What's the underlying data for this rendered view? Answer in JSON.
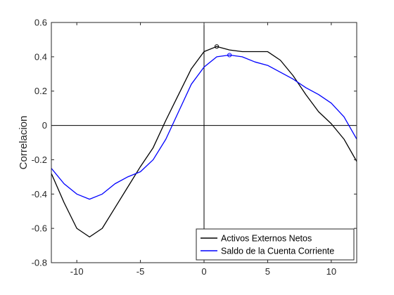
{
  "chart_data": {
    "type": "line",
    "title": "",
    "xlabel": "",
    "ylabel": "Correlacion",
    "xlim": [
      -12,
      12
    ],
    "ylim": [
      -0.8,
      0.6
    ],
    "x_ticks": [
      -10,
      -5,
      0,
      5,
      10
    ],
    "y_ticks": [
      -0.8,
      -0.6,
      -0.4,
      -0.2,
      0,
      0.2,
      0.4,
      0.6
    ],
    "x_tick_labels": [
      "-10",
      "-5",
      "0",
      "5",
      "10"
    ],
    "y_tick_labels": [
      "-0.8",
      "-0.6",
      "-0.4",
      "-0.2",
      "0",
      "0.2",
      "0.4",
      "0.6"
    ],
    "grid": false,
    "reference_lines": {
      "horizontal": 0,
      "vertical": 0
    },
    "legend_position": "bottom-right",
    "x": [
      -12,
      -11,
      -10,
      -9,
      -8,
      -7,
      -6,
      -5,
      -4,
      -3,
      -2,
      -1,
      0,
      1,
      2,
      3,
      4,
      5,
      6,
      7,
      8,
      9,
      10,
      11,
      12
    ],
    "series": [
      {
        "name": "Activos Externos Netos",
        "color": "#000000",
        "values": [
          -0.28,
          -0.45,
          -0.6,
          -0.65,
          -0.6,
          -0.48,
          -0.36,
          -0.24,
          -0.13,
          0.03,
          0.18,
          0.33,
          0.43,
          0.46,
          0.44,
          0.43,
          0.43,
          0.43,
          0.38,
          0.29,
          0.18,
          0.08,
          0.01,
          -0.08,
          -0.21
        ],
        "marker_at_index": 13
      },
      {
        "name": "Saldo de la Cuenta Corriente",
        "color": "#0000ff",
        "values": [
          -0.25,
          -0.34,
          -0.4,
          -0.43,
          -0.4,
          -0.34,
          -0.3,
          -0.27,
          -0.2,
          -0.08,
          0.08,
          0.24,
          0.34,
          0.4,
          0.41,
          0.4,
          0.37,
          0.35,
          0.31,
          0.27,
          0.22,
          0.18,
          0.13,
          0.05,
          -0.08
        ],
        "marker_at_index": 14
      }
    ]
  }
}
